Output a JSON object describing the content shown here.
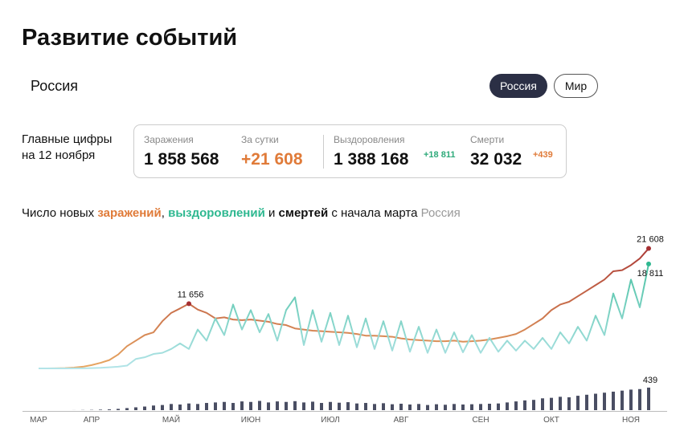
{
  "header": {
    "title": "Развитие событий",
    "region": "Россия",
    "tabs": [
      "Россия",
      "Мир"
    ]
  },
  "summary": {
    "caption": [
      "Главные цифры",
      "на 12 ноября"
    ],
    "stats": [
      {
        "label": "Заражения",
        "value": "1 858 568"
      },
      {
        "label": "За сутки",
        "value": "+21 608"
      },
      {
        "label": "Выздоровления",
        "value": "1 388 168",
        "delta": "+18 811"
      },
      {
        "label": "Смерти",
        "value": "32 032",
        "delta": "+439"
      }
    ]
  },
  "chart_data": {
    "type": "line",
    "title": [
      "Число новых ",
      ", ",
      " и ",
      " с начала марта "
    ],
    "region": "Россия",
    "categories": [
      "МАР",
      null,
      null,
      null,
      null,
      null,
      "АПР",
      null,
      null,
      null,
      null,
      null,
      null,
      null,
      null,
      "МАЙ",
      null,
      null,
      null,
      null,
      null,
      null,
      null,
      null,
      "ИЮН",
      null,
      null,
      null,
      null,
      null,
      null,
      null,
      null,
      "ИЮЛ",
      null,
      null,
      null,
      null,
      null,
      null,
      null,
      "АВГ",
      null,
      null,
      null,
      null,
      null,
      null,
      null,
      null,
      "СЕН",
      null,
      null,
      null,
      null,
      null,
      null,
      null,
      "ОКТ",
      null,
      null,
      null,
      null,
      null,
      null,
      null,
      null,
      "НОЯ",
      null,
      null
    ],
    "ylim": [
      0,
      24000
    ],
    "y2lim": [
      0,
      500
    ],
    "series": [
      {
        "name": "заражений",
        "type": "line",
        "colors": [
          "#e8a862",
          "#a52f32"
        ],
        "values": [
          0,
          5,
          20,
          60,
          150,
          300,
          600,
          1000,
          1500,
          2500,
          4000,
          5000,
          6000,
          6500,
          8500,
          10000,
          10800,
          11656,
          10600,
          10000,
          9000,
          9200,
          8800,
          8700,
          8800,
          8600,
          8400,
          8000,
          7800,
          7200,
          7000,
          6800,
          6700,
          6600,
          6500,
          6400,
          6200,
          5900,
          5900,
          5800,
          5700,
          5400,
          5200,
          5100,
          5000,
          4900,
          4900,
          5000,
          4800,
          4900,
          5000,
          5200,
          5500,
          5800,
          6200,
          7000,
          8000,
          9000,
          10500,
          11500,
          12000,
          13000,
          14000,
          15000,
          16000,
          17500,
          17700,
          18600,
          19800,
          21608
        ],
        "value_labels": [
          null,
          null,
          null,
          null,
          null,
          null,
          null,
          null,
          null,
          null,
          null,
          null,
          null,
          null,
          null,
          null,
          null,
          "11 656",
          null,
          null,
          null,
          null,
          null,
          null,
          null,
          null,
          null,
          null,
          null,
          null,
          null,
          null,
          null,
          null,
          null,
          null,
          null,
          null,
          null,
          null,
          null,
          null,
          null,
          null,
          null,
          null,
          null,
          null,
          null,
          null,
          null,
          null,
          null,
          null,
          null,
          null,
          null,
          null,
          null,
          null,
          null,
          null,
          null,
          null,
          null,
          null,
          null,
          null,
          null,
          "21 608"
        ]
      },
      {
        "name": "выздоровлений",
        "type": "line",
        "colors": [
          "#b3e4e8",
          "#2eb890"
        ],
        "values": [
          0,
          0,
          0,
          5,
          10,
          20,
          50,
          100,
          200,
          300,
          500,
          1700,
          2000,
          2600,
          2800,
          3500,
          4500,
          3500,
          7000,
          5000,
          9000,
          6000,
          11500,
          7000,
          10500,
          6500,
          9800,
          5000,
          10500,
          12800,
          4200,
          10500,
          4800,
          10000,
          4200,
          9500,
          3800,
          9000,
          3500,
          8500,
          3200,
          8500,
          3000,
          7500,
          2800,
          7000,
          2800,
          6500,
          2900,
          6000,
          2800,
          5500,
          3000,
          5000,
          3200,
          5000,
          3500,
          5500,
          3500,
          6500,
          4500,
          7500,
          5000,
          9500,
          6000,
          13500,
          9000,
          16000,
          11000,
          18811
        ],
        "value_labels": [
          null,
          null,
          null,
          null,
          null,
          null,
          null,
          null,
          null,
          null,
          null,
          null,
          null,
          null,
          null,
          null,
          null,
          null,
          null,
          null,
          null,
          null,
          null,
          null,
          null,
          null,
          null,
          null,
          null,
          null,
          null,
          null,
          null,
          null,
          null,
          null,
          null,
          null,
          null,
          null,
          null,
          null,
          null,
          null,
          null,
          null,
          null,
          null,
          null,
          null,
          null,
          null,
          null,
          null,
          null,
          null,
          null,
          null,
          null,
          null,
          null,
          null,
          null,
          null,
          null,
          null,
          null,
          null,
          null,
          "18 811"
        ]
      },
      {
        "name": "смертей",
        "type": "bar",
        "axis": "y2",
        "color": "#4a4e63",
        "values": [
          0,
          0,
          0,
          0,
          1,
          3,
          5,
          10,
          15,
          25,
          40,
          55,
          70,
          90,
          100,
          120,
          110,
          130,
          120,
          140,
          150,
          160,
          140,
          170,
          160,
          180,
          150,
          170,
          160,
          175,
          150,
          165,
          140,
          160,
          145,
          155,
          130,
          140,
          120,
          135,
          115,
          125,
          110,
          120,
          100,
          115,
          105,
          120,
          110,
          115,
          120,
          125,
          130,
          150,
          170,
          190,
          200,
          230,
          240,
          260,
          250,
          280,
          300,
          320,
          340,
          360,
          380,
          400,
          410,
          439
        ],
        "value_labels": [
          null,
          null,
          null,
          null,
          null,
          null,
          null,
          null,
          null,
          null,
          null,
          null,
          null,
          null,
          null,
          null,
          null,
          null,
          null,
          null,
          null,
          null,
          null,
          null,
          null,
          null,
          null,
          null,
          null,
          null,
          null,
          null,
          null,
          null,
          null,
          null,
          null,
          null,
          null,
          null,
          null,
          null,
          null,
          null,
          null,
          null,
          null,
          null,
          null,
          null,
          null,
          null,
          null,
          null,
          null,
          null,
          null,
          null,
          null,
          null,
          null,
          null,
          null,
          null,
          null,
          null,
          null,
          null,
          null,
          "439"
        ]
      }
    ]
  }
}
